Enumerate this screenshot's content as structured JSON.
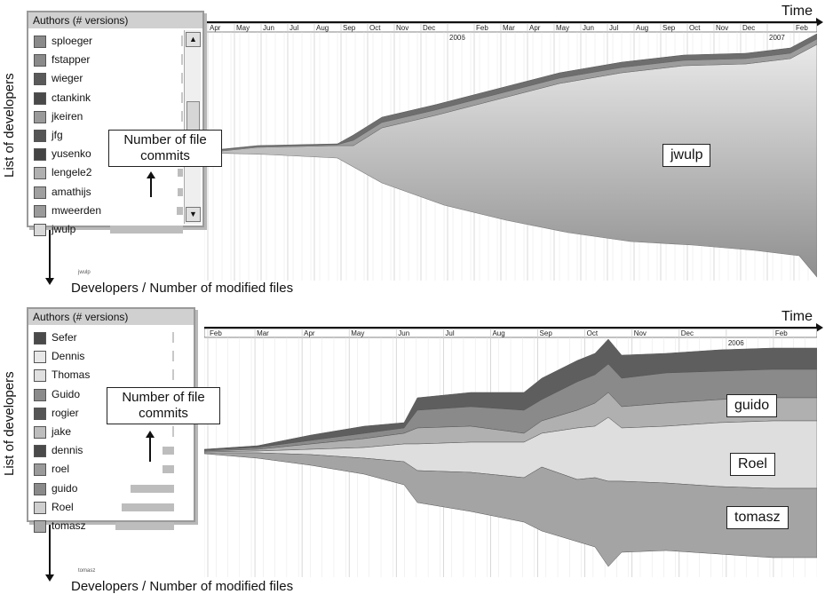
{
  "top": {
    "time_label": "Time",
    "ylabel": "List of developers",
    "axis_caption": "Developers / Number of modified files",
    "legend_title": "Authors (# versions)",
    "authors": [
      {
        "name": "sploeger",
        "color": "#8a8a8a",
        "commits": 0
      },
      {
        "name": "fstapper",
        "color": "#8a8a8a",
        "commits": 0
      },
      {
        "name": "wieger",
        "color": "#5a5a5a",
        "commits": 0
      },
      {
        "name": "ctankink",
        "color": "#4a4a4a",
        "commits": 0
      },
      {
        "name": "jkeiren",
        "color": "#9a9a9a",
        "commits": 0
      },
      {
        "name": "jfg",
        "color": "#555555",
        "commits": 0
      },
      {
        "name": "yusenko",
        "color": "#444444",
        "commits": 0
      },
      {
        "name": "lengele2",
        "color": "#b0b0b0",
        "commits": 0.05
      },
      {
        "name": "amathijs",
        "color": "#a0a0a0",
        "commits": 0.06
      },
      {
        "name": "mweerden",
        "color": "#9a9a9a",
        "commits": 0.08
      },
      {
        "name": "jwulp",
        "color": "#d8d8d8",
        "commits": 1.0
      }
    ],
    "callout": "Number of file commits",
    "stream_label": "jwulp",
    "small_label": "jwulp",
    "months": [
      "Apr",
      "May",
      "Jun",
      "Jul",
      "Aug",
      "Sep",
      "Oct",
      "Nov",
      "Dec",
      "2006",
      "Feb",
      "Mar",
      "Apr",
      "May",
      "Jun",
      "Jul",
      "Aug",
      "Sep",
      "Oct",
      "Nov",
      "Dec",
      "2007",
      "Feb"
    ]
  },
  "bottom": {
    "time_label": "Time",
    "ylabel": "List of developers",
    "axis_caption": "Developers / Number of modified files",
    "legend_title": "Authors (# versions)",
    "authors": [
      {
        "name": "Sefer",
        "color": "#4a4a4a",
        "commits": 0
      },
      {
        "name": "Dennis",
        "color": "#e8e8e8",
        "commits": 0
      },
      {
        "name": "Thomas",
        "color": "#e0e0e0",
        "commits": 0
      },
      {
        "name": "Guido",
        "color": "#8a8a8a",
        "commits": 0
      },
      {
        "name": "rogier",
        "color": "#555555",
        "commits": 0
      },
      {
        "name": "jake",
        "color": "#bdbdbd",
        "commits": 0
      },
      {
        "name": "dennis",
        "color": "#4a4a4a",
        "commits": 0.2
      },
      {
        "name": "roel",
        "color": "#9a9a9a",
        "commits": 0.2
      },
      {
        "name": "guido",
        "color": "#8a8a8a",
        "commits": 0.75
      },
      {
        "name": "Roel",
        "color": "#cfcfcf",
        "commits": 0.9
      },
      {
        "name": "tomasz",
        "color": "#a8a8a8",
        "commits": 1.0
      }
    ],
    "callout": "Number of file commits",
    "stream_labels": [
      "guido",
      "Roel",
      "tomasz"
    ],
    "small_label": "tomasz",
    "months": [
      "Feb",
      "Mar",
      "Apr",
      "May",
      "Jun",
      "Jul",
      "Aug",
      "Sep",
      "Oct",
      "Nov",
      "Dec",
      "2006",
      "Feb"
    ]
  }
}
